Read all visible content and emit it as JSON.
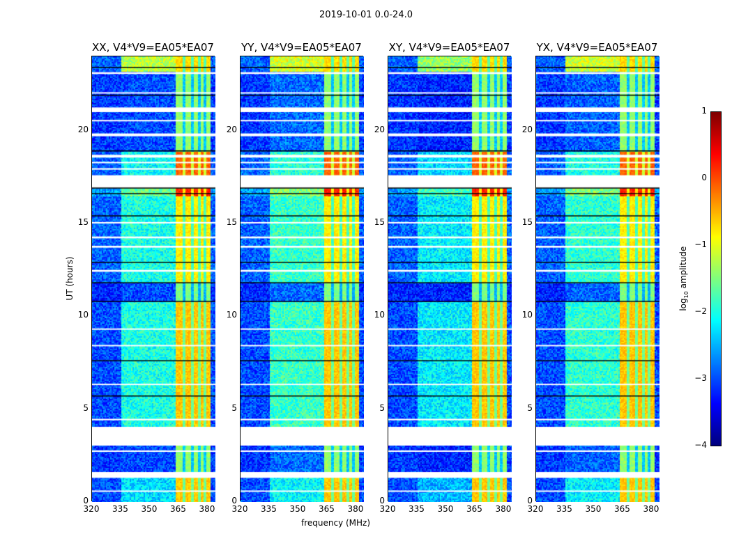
{
  "figure": {
    "title": "2019-10-01 0.0-24.0"
  },
  "chart_data": {
    "type": "heatmap",
    "title": "2019-10-01 0.0-24.0",
    "xlabel": "frequency (MHz)",
    "ylabel": "UT (hours)",
    "xlim": [
      320,
      384
    ],
    "ylim": [
      0,
      24
    ],
    "xticks": [
      "320",
      "335",
      "350",
      "365",
      "380"
    ],
    "xtick_values": [
      320,
      335,
      350,
      365,
      380
    ],
    "yticks": [
      "0",
      "5",
      "10",
      "15",
      "20"
    ],
    "ytick_values": [
      0,
      5,
      10,
      15,
      20
    ],
    "panels": [
      {
        "title": "XX, V4*V9=EA05*EA07",
        "mid_offset": 0.0
      },
      {
        "title": "YY, V4*V9=EA05*EA07",
        "mid_offset": 0.15
      },
      {
        "title": "XY, V4*V9=EA05*EA07",
        "mid_offset": -0.2
      },
      {
        "title": "YX, V4*V9=EA05*EA07",
        "mid_offset": 0.1
      }
    ],
    "colorbar": {
      "label": "log10 amplitude",
      "label_main": "log",
      "label_sub": "10",
      "label_rest": " amplitude",
      "range": [
        -4,
        1
      ],
      "ticks": [
        "1",
        "0",
        "−1",
        "−2",
        "−3",
        "−4"
      ],
      "tick_values": [
        1,
        0,
        -1,
        -2,
        -3,
        -4
      ],
      "colormap": "jet"
    },
    "freq_segments": [
      {
        "from": 320,
        "to": 335,
        "kind": "low"
      },
      {
        "from": 335,
        "to": 363,
        "kind": "mid"
      },
      {
        "from": 363,
        "to": 381,
        "kind": "bright"
      },
      {
        "from": 381,
        "to": 384,
        "kind": "low"
      }
    ],
    "dark_channels_mhz": [
      367.5,
      371.5,
      375.5,
      378
    ],
    "time_blocks": [
      {
        "from": 0,
        "to": 1.3,
        "low": -3.0,
        "mid": -2.3,
        "bright": -0.6
      },
      {
        "from": 1.6,
        "to": 3.05,
        "low": -3.1,
        "mid": -3.0,
        "bright": -1.4
      },
      {
        "from": 4.05,
        "to": 10.8,
        "low": -3.0,
        "mid": -2.0,
        "bright": -0.6
      },
      {
        "from": 10.8,
        "to": 11.8,
        "low": -3.2,
        "mid": -3.0,
        "bright": -1.5
      },
      {
        "from": 11.8,
        "to": 16.5,
        "low": -2.9,
        "mid": -2.0,
        "bright": -0.8
      },
      {
        "from": 16.5,
        "to": 16.9,
        "low": -2.6,
        "mid": -1.6,
        "bright": 0.2
      },
      {
        "from": 17.6,
        "to": 18.9,
        "low": -2.9,
        "mid": -2.1,
        "bright": -0.1
      },
      {
        "from": 18.9,
        "to": 23.2,
        "low": -3.1,
        "mid": -3.0,
        "bright": -1.4
      },
      {
        "from": 23.2,
        "to": 24,
        "low": -2.9,
        "mid": -1.2,
        "bright": -0.7
      }
    ],
    "flagged_hours": [
      [
        1.3,
        1.6
      ],
      [
        3.05,
        4.05
      ],
      [
        16.9,
        17.6
      ],
      [
        21.0,
        21.25
      ],
      [
        19.7,
        19.85
      ],
      [
        18.55,
        18.7
      ],
      [
        23.05,
        23.15
      ],
      [
        0.55,
        0.62
      ],
      [
        2.7,
        2.78
      ],
      [
        4.4,
        4.48
      ],
      [
        6.3,
        6.37
      ],
      [
        8.4,
        8.46
      ],
      [
        9.3,
        9.35
      ],
      [
        12.4,
        12.5
      ],
      [
        13.7,
        13.8
      ],
      [
        14.2,
        14.3
      ],
      [
        15.0,
        15.08
      ],
      [
        17.9,
        17.98
      ],
      [
        18.25,
        18.32
      ],
      [
        20.5,
        20.58
      ],
      [
        22.0,
        22.07
      ]
    ],
    "dark_lines_hours": [
      5.7,
      7.6,
      10.8,
      11.8,
      12.9,
      15.4,
      16.6,
      16.9,
      18.9,
      21.9,
      23.4
    ]
  }
}
